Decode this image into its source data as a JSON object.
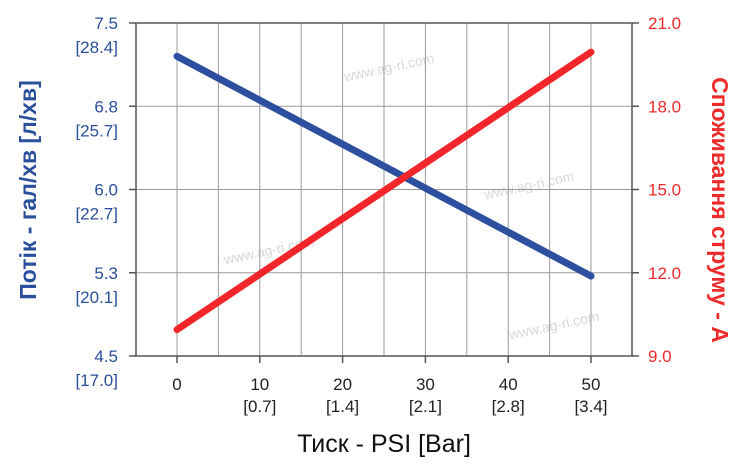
{
  "chart_data": {
    "type": "line",
    "x": [
      0,
      50
    ],
    "xlim": [
      0,
      50
    ],
    "x_ticks": [
      {
        "value": 0,
        "label": "0",
        "sub": ""
      },
      {
        "value": 10,
        "label": "10",
        "sub": "[0.7]"
      },
      {
        "value": 20,
        "label": "20",
        "sub": "[1.4]"
      },
      {
        "value": 30,
        "label": "30",
        "sub": "[2.1]"
      },
      {
        "value": 40,
        "label": "40",
        "sub": "[2.8]"
      },
      {
        "value": 50,
        "label": "50",
        "sub": "[3.4]"
      }
    ],
    "xlabel": "Тиск - PSI [Bar]",
    "ylabel_left": "Потік - гал/хв [л/хв]",
    "ylim_left": [
      4.5,
      7.5
    ],
    "yticks_left": [
      {
        "value": 7.5,
        "label": "7.5",
        "sub": "[28.4]"
      },
      {
        "value": 6.75,
        "label": "6.8",
        "sub": "[25.7]"
      },
      {
        "value": 6.0,
        "label": "6.0",
        "sub": "[22.7]"
      },
      {
        "value": 5.25,
        "label": "5.3",
        "sub": "[20.1]"
      },
      {
        "value": 4.5,
        "label": "4.5",
        "sub": "[17.0]"
      }
    ],
    "ylabel_right": "Споживання струму - А",
    "ylim_right": [
      9.0,
      21.0
    ],
    "yticks_right": [
      {
        "value": 21.0,
        "label": "21.0"
      },
      {
        "value": 18.0,
        "label": "18.0"
      },
      {
        "value": 15.0,
        "label": "15.0"
      },
      {
        "value": 12.0,
        "label": "12.0"
      },
      {
        "value": 9.0,
        "label": "9.0"
      }
    ],
    "series": [
      {
        "axis": "left",
        "color": "#2d4fa0",
        "values": [
          7.2,
          5.22
        ]
      },
      {
        "axis": "right",
        "color": "#f0262a",
        "values": [
          9.95,
          19.95
        ]
      }
    ],
    "grid": true,
    "watermark": "www.ag-ri.com"
  }
}
